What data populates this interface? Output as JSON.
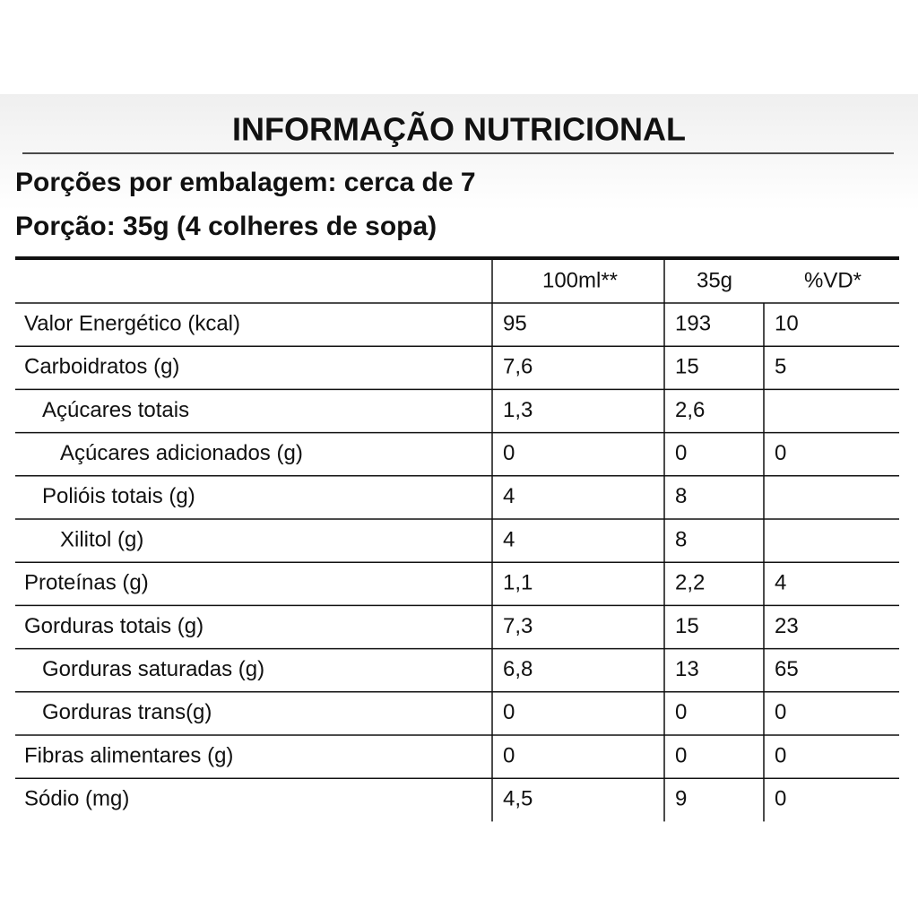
{
  "title": "INFORMAÇÃO NUTRICIONAL",
  "servings": "Porções por embalagem: cerca de 7",
  "portion": "Porção: 35g (4 colheres de sopa)",
  "table": {
    "header": [
      "100ml**",
      "35g",
      "%VD*"
    ],
    "rows": [
      [
        "Valor Energético (kcal)",
        "95",
        "193",
        "10"
      ],
      [
        "Carboidratos (g)",
        "7,6",
        "15",
        "5"
      ],
      [
        "Açúcares totais",
        "1,3",
        "2,6",
        null
      ],
      [
        "Açúcares adicionados (g)",
        "0",
        "0",
        "0"
      ],
      [
        "Polióis totais (g)",
        "4",
        "8",
        null
      ],
      [
        "Xilitol (g)",
        "4",
        "8",
        null
      ],
      [
        "Proteínas (g)",
        "1,1",
        "2,2",
        "4"
      ],
      [
        "Gorduras totais (g)",
        "7,3",
        "15",
        "23"
      ],
      [
        "Gorduras saturadas (g)",
        "6,8",
        "13",
        "65"
      ],
      [
        "Gorduras trans(g)",
        "0",
        "0",
        "0"
      ],
      [
        "Fibras alimentares (g)",
        "0",
        "0",
        "0"
      ],
      [
        "Sódio (mg)",
        "4,5",
        "9",
        "0"
      ]
    ]
  }
}
